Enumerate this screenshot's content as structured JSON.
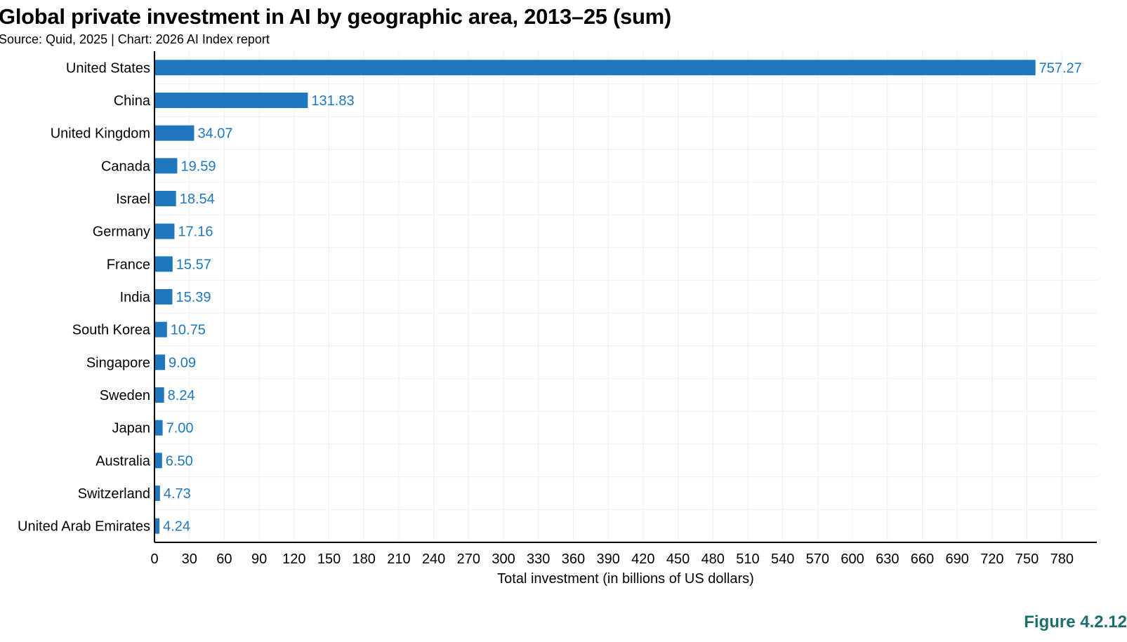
{
  "header": {
    "title": "Global private investment in AI by geographic area, 2013–25 (sum)",
    "subtitle": "Source: Quid, 2025 | Chart: 2026 AI Index report"
  },
  "footer": {
    "figure_label": "Figure 4.2.12"
  },
  "colors": {
    "bar": "#1f77bd",
    "value_label": "#1f77bd",
    "grid": "#eeeeee",
    "axis": "#000000",
    "figure_label": "#1d6f6e"
  },
  "chart_data": {
    "type": "bar",
    "orientation": "horizontal",
    "categories": [
      "United States",
      "China",
      "United Kingdom",
      "Canada",
      "Israel",
      "Germany",
      "France",
      "India",
      "South Korea",
      "Singapore",
      "Sweden",
      "Japan",
      "Australia",
      "Switzerland",
      "United Arab Emirates"
    ],
    "values": [
      757.27,
      131.83,
      34.07,
      19.59,
      18.54,
      17.16,
      15.57,
      15.39,
      10.75,
      9.09,
      8.24,
      7.0,
      6.5,
      4.73,
      4.24
    ],
    "value_labels": [
      "757.27",
      "131.83",
      "34.07",
      "19.59",
      "18.54",
      "17.16",
      "15.57",
      "15.39",
      "10.75",
      "9.09",
      "8.24",
      "7.00",
      "6.50",
      "4.73",
      "4.24"
    ],
    "title": "Global private investment in AI by geographic area, 2013–25 (sum)",
    "xlabel": "Total investment (in billions of US dollars)",
    "ylabel": "",
    "xlim": [
      0,
      810
    ],
    "x_ticks": [
      0,
      30,
      60,
      90,
      120,
      150,
      180,
      210,
      240,
      270,
      300,
      330,
      360,
      390,
      420,
      450,
      480,
      510,
      540,
      570,
      600,
      630,
      660,
      690,
      720,
      750,
      780
    ],
    "grid": true,
    "legend": "none"
  }
}
